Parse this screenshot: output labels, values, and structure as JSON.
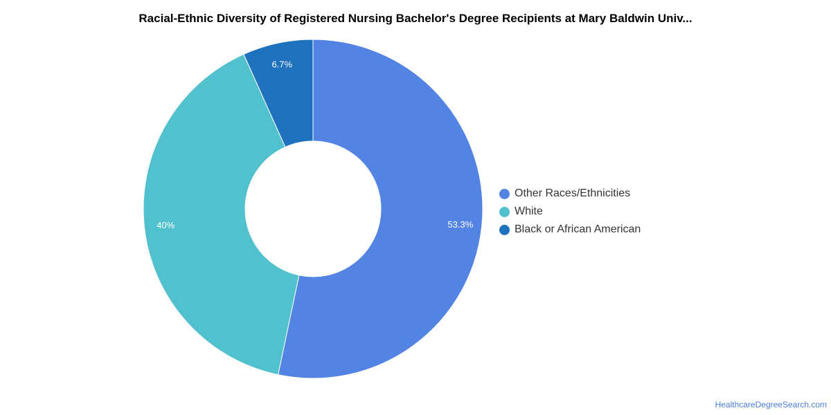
{
  "chart_data": {
    "type": "pie",
    "title": "Racial-Ethnic Diversity of Registered Nursing Bachelor's Degree Recipients at Mary Baldwin Univ...",
    "donut": true,
    "legend_position": "right",
    "slices": [
      {
        "name": "Other Races/Ethnicities",
        "value": 53.3,
        "label": "53.3%",
        "color": "#5484e3"
      },
      {
        "name": "White",
        "value": 40,
        "label": "40%",
        "color": "#52c1ce"
      },
      {
        "name": "Black or African American",
        "value": 6.7,
        "label": "6.7%",
        "color": "#1f72bd"
      }
    ]
  },
  "footer": {
    "source": "HealthcareDegreeSearch.com"
  }
}
